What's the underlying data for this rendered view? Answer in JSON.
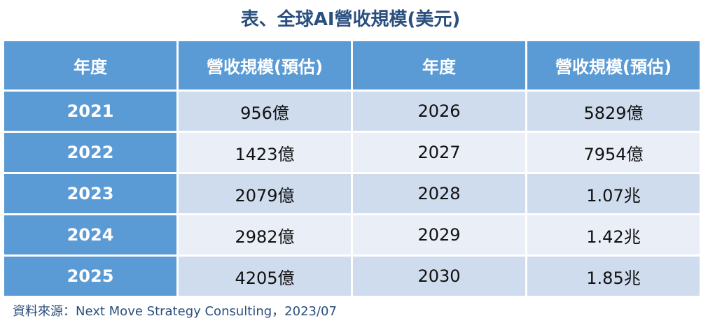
{
  "title": "表、全球AI營收規模(美元)",
  "table": {
    "headers": [
      "年度",
      "營收規模(預估)",
      "年度",
      "營收規模(預估)"
    ],
    "rows": [
      {
        "year_a": "2021",
        "value_a": "956億",
        "year_b": "2026",
        "value_b": "5829億"
      },
      {
        "year_a": "2022",
        "value_a": "1423億",
        "year_b": "2027",
        "value_b": "7954億"
      },
      {
        "year_a": "2023",
        "value_a": "2079億",
        "year_b": "2028",
        "value_b": "1.07兆"
      },
      {
        "year_a": "2024",
        "value_a": "2982億",
        "year_b": "2029",
        "value_b": "1.42兆"
      },
      {
        "year_a": "2025",
        "value_a": "4205億",
        "year_b": "2030",
        "value_b": "1.85兆"
      }
    ]
  },
  "source": "資料來源：Next Move Strategy Consulting，2023/07",
  "colors": {
    "header": "#5b9bd5",
    "row_odd": "#cfdcee",
    "row_even": "#e9eef7",
    "title": "#2b4f7e"
  }
}
